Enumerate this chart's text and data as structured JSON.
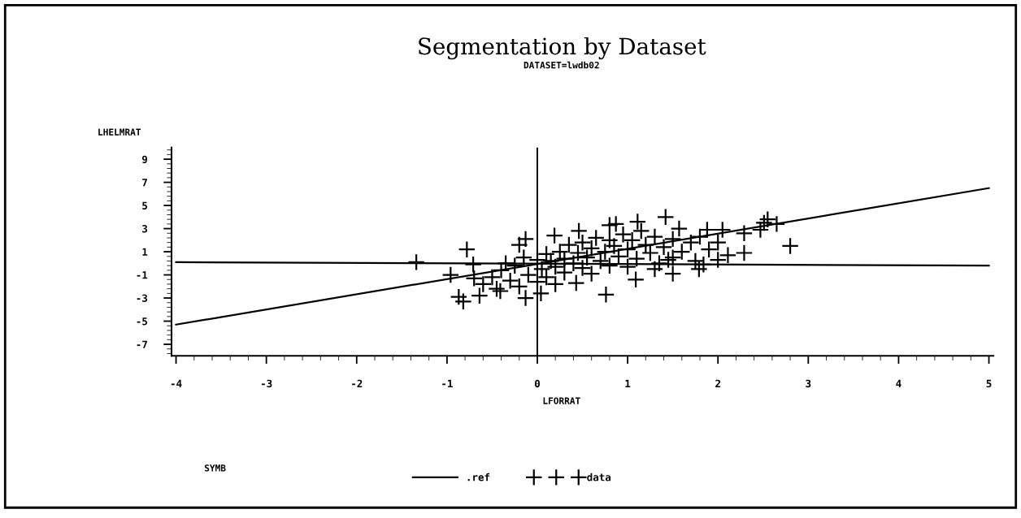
{
  "chart_data": {
    "type": "scatter",
    "title": "Segmentation by Dataset",
    "subtitle": "DATASET=lwdb02",
    "xlabel": "LFORRAT",
    "ylabel": "LHELMRAT",
    "legend_title": "SYMB",
    "xlim": [
      -4.05,
      5.05
    ],
    "ylim": [
      -8,
      10
    ],
    "xticks": [
      {
        "value": -4,
        "label": "-4"
      },
      {
        "value": -3,
        "label": "-3"
      },
      {
        "value": -2,
        "label": "-2"
      },
      {
        "value": -1,
        "label": "-1"
      },
      0,
      1,
      2,
      3,
      4,
      5
    ],
    "yticks": [
      {
        "value": -7,
        "label": "-7"
      },
      {
        "value": -5,
        "label": "-5"
      },
      {
        "value": -3,
        "label": "-3"
      },
      {
        "value": -1,
        "label": "-1"
      },
      1,
      3,
      5,
      7,
      9
    ],
    "grid": false,
    "legend": "bottom",
    "ref_lines": [
      {
        "axis": "x",
        "value": 0,
        "color": "#000000"
      }
    ],
    "series": [
      {
        "name": ".ref",
        "type": "line",
        "marker": "none",
        "color": "#000000",
        "x": [
          -4,
          5
        ],
        "values": [
          -5.3,
          6.5
        ]
      },
      {
        "type": "line",
        "marker": "none",
        "color": "#000000",
        "x": [
          -4,
          5
        ],
        "values": [
          0.1,
          -0.2
        ]
      },
      {
        "name": "data",
        "marker": "cross",
        "color": "#000000",
        "x": [
          -1.34,
          -0.78,
          -0.71,
          -0.96,
          -0.87,
          -0.82,
          -0.64,
          -0.35,
          -0.41,
          -0.13,
          0.04,
          -0.2,
          -0.13,
          0.19,
          0.46,
          0.43,
          0.76,
          0.8,
          0.87,
          1.11,
          1.42,
          1.09,
          1.5,
          1.57,
          1.88,
          2.05,
          2.29,
          2.29,
          2.11,
          1.79,
          2.51,
          2.55,
          2.47,
          2.65,
          2.8,
          1.84,
          1.3,
          1.45,
          -0.5,
          -0.4,
          -0.3,
          -0.25,
          -0.15,
          -0.1,
          0,
          0.05,
          0.1,
          0.1,
          0.15,
          0.2,
          0.25,
          0.3,
          0.3,
          0.35,
          0.4,
          0.45,
          0.5,
          0.5,
          0.55,
          0.6,
          0.6,
          0.65,
          0.7,
          0.75,
          0.8,
          0.8,
          0.85,
          0.9,
          0.95,
          1.0,
          1.0,
          1.05,
          1.1,
          1.15,
          1.2,
          1.25,
          1.3,
          1.35,
          1.4,
          1.5,
          1.5,
          1.6,
          1.7,
          1.75,
          1.8,
          1.9,
          2.0,
          2.0,
          -0.6,
          -0.7,
          -0.45,
          -0.2,
          0.2,
          0.0
        ],
        "values": [
          0.1,
          1.2,
          -0.1,
          -1.0,
          -2.9,
          -3.3,
          -2.8,
          0,
          -2.4,
          -3.0,
          -2.6,
          1.6,
          2.1,
          2.4,
          2.8,
          -1.7,
          -2.7,
          3.3,
          3.4,
          3.6,
          4.0,
          -1.4,
          -0.9,
          3.0,
          2.9,
          2.9,
          2.6,
          0.9,
          0.7,
          -0.5,
          3.5,
          3.8,
          2.9,
          3.4,
          1.5,
          -0.1,
          -0.5,
          0.3,
          -1.2,
          -0.6,
          -1.5,
          -0.2,
          0.5,
          -1.0,
          0.3,
          -0.5,
          0.8,
          -1.2,
          0.2,
          -0.3,
          1.0,
          0.4,
          -0.8,
          1.6,
          0.0,
          0.9,
          -0.4,
          1.8,
          0.5,
          1.3,
          -0.9,
          2.2,
          0.2,
          1.0,
          2.0,
          -0.2,
          1.5,
          0.6,
          2.5,
          1.2,
          -0.3,
          2.0,
          0.4,
          2.8,
          1.6,
          0.9,
          2.3,
          0.0,
          1.4,
          2.1,
          0.5,
          1.0,
          1.8,
          0.2,
          2.3,
          1.2,
          0.3,
          1.8,
          -1.8,
          -1.3,
          -2.2,
          -2.0,
          -1.8,
          -1.6
        ]
      }
    ]
  }
}
